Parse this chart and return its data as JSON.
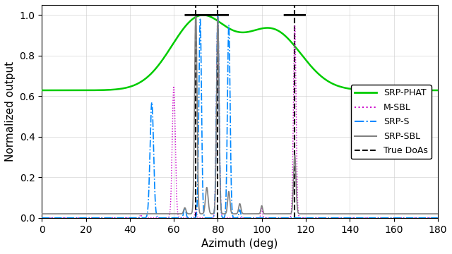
{
  "true_doas": [
    70,
    80,
    115
  ],
  "xlim": [
    0,
    180
  ],
  "ylim": [
    0,
    1.05
  ],
  "xlabel": "Azimuth (deg)",
  "ylabel": "Normalized output",
  "xticks": [
    0,
    20,
    40,
    60,
    80,
    100,
    120,
    140,
    160,
    180
  ],
  "yticks": [
    0,
    0.2,
    0.4,
    0.6,
    0.8,
    1
  ],
  "srp_phat_color": "#00CC00",
  "msbl_color": "#CC00CC",
  "srps_color": "#0088FF",
  "srpsbl_color": "#808080",
  "true_doas_color": "#000000",
  "circle_doas": [
    70,
    80,
    115
  ],
  "legend_labels": [
    "SRP-PHAT",
    "M-SBL",
    "SRP-S",
    "SRP-SBL",
    "True DoAs"
  ]
}
